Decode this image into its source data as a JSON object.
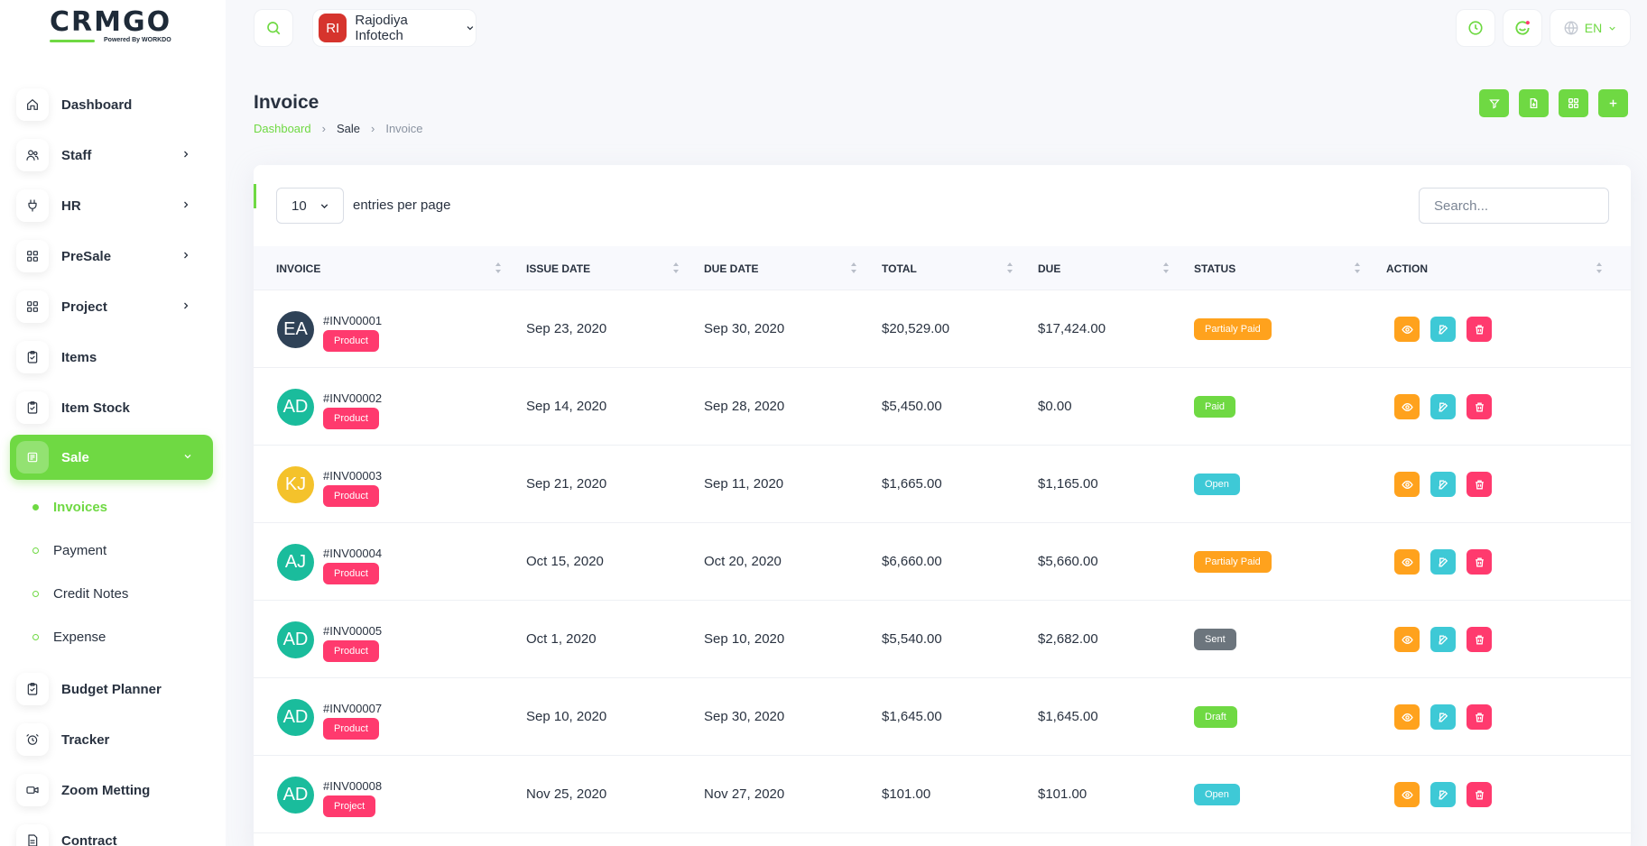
{
  "brand": {
    "name": "CRMGO",
    "powered_by": "Powered By WORKDO",
    "accent": "#6fd943"
  },
  "sidebar": {
    "items": [
      {
        "label": "Dashboard",
        "icon": "home-icon",
        "has_children": false
      },
      {
        "label": "Staff",
        "icon": "users-icon",
        "has_children": true
      },
      {
        "label": "HR",
        "icon": "plug-icon",
        "has_children": true
      },
      {
        "label": "PreSale",
        "icon": "grid-icon",
        "has_children": true
      },
      {
        "label": "Project",
        "icon": "grid-icon",
        "has_children": true
      },
      {
        "label": "Items",
        "icon": "clipboard-icon",
        "has_children": false
      },
      {
        "label": "Item Stock",
        "icon": "clipboard-icon",
        "has_children": false
      },
      {
        "label": "Sale",
        "icon": "receipt-icon",
        "has_children": true,
        "active": true
      }
    ],
    "sale_submenu": [
      {
        "label": "Invoices",
        "active": true
      },
      {
        "label": "Payment"
      },
      {
        "label": "Credit Notes"
      },
      {
        "label": "Expense"
      }
    ],
    "items_after": [
      {
        "label": "Budget Planner",
        "icon": "clipboard-icon"
      },
      {
        "label": "Tracker",
        "icon": "alarm-icon"
      },
      {
        "label": "Zoom Metting",
        "icon": "video-icon"
      },
      {
        "label": "Contract",
        "icon": "document-icon"
      }
    ]
  },
  "header": {
    "company_initials": "RI",
    "company_name": "Rajodiya Infotech",
    "language": "EN"
  },
  "page": {
    "title": "Invoice",
    "breadcrumb": [
      "Dashboard",
      "Sale",
      "Invoice"
    ]
  },
  "table_controls": {
    "per_page_value": "10",
    "per_page_label": "entries per page",
    "search_placeholder": "Search..."
  },
  "table": {
    "columns": [
      "INVOICE",
      "ISSUE DATE",
      "DUE DATE",
      "TOTAL",
      "DUE",
      "STATUS",
      "ACTION"
    ],
    "rows": [
      {
        "initials": "EA",
        "avatar_color": "#2f4257",
        "number": "#INV00001",
        "type": "Product",
        "issue": "Sep 23, 2020",
        "due_date": "Sep 30, 2020",
        "total": "$20,529.00",
        "due": "$17,424.00",
        "status": "Partialy Paid",
        "status_color": "#ffa21d"
      },
      {
        "initials": "AD",
        "avatar_color": "#1abc9c",
        "number": "#INV00002",
        "type": "Product",
        "issue": "Sep 14, 2020",
        "due_date": "Sep 28, 2020",
        "total": "$5,450.00",
        "due": "$0.00",
        "status": "Paid",
        "status_color": "#6fd943"
      },
      {
        "initials": "KJ",
        "avatar_color": "#f4c22b",
        "number": "#INV00003",
        "type": "Product",
        "issue": "Sep 21, 2020",
        "due_date": "Sep 11, 2020",
        "total": "$1,665.00",
        "due": "$1,165.00",
        "status": "Open",
        "status_color": "#3ec9d6"
      },
      {
        "initials": "AJ",
        "avatar_color": "#1abc9c",
        "number": "#INV00004",
        "type": "Product",
        "issue": "Oct 15, 2020",
        "due_date": "Oct 20, 2020",
        "total": "$6,660.00",
        "due": "$5,660.00",
        "status": "Partialy Paid",
        "status_color": "#ffa21d"
      },
      {
        "initials": "AD",
        "avatar_color": "#1abc9c",
        "number": "#INV00005",
        "type": "Product",
        "issue": "Oct 1, 2020",
        "due_date": "Sep 10, 2020",
        "total": "$5,540.00",
        "due": "$2,682.00",
        "status": "Sent",
        "status_color": "#6c757d"
      },
      {
        "initials": "AD",
        "avatar_color": "#1abc9c",
        "number": "#INV00007",
        "type": "Product",
        "issue": "Sep 10, 2020",
        "due_date": "Sep 30, 2020",
        "total": "$1,645.00",
        "due": "$1,645.00",
        "status": "Draft",
        "status_color": "#6fd943"
      },
      {
        "initials": "AD",
        "avatar_color": "#1abc9c",
        "number": "#INV00008",
        "type": "Project",
        "issue": "Nov 25, 2020",
        "due_date": "Nov 27, 2020",
        "total": "$101.00",
        "due": "$101.00",
        "status": "Open",
        "status_color": "#3ec9d6"
      }
    ]
  }
}
